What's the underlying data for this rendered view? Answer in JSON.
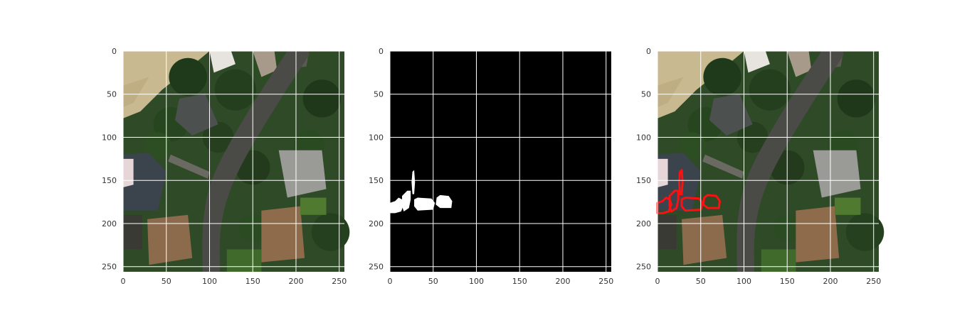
{
  "chart_data": [
    {
      "type": "image",
      "panel": "aerial-image",
      "xlim": [
        0,
        256
      ],
      "ylim": [
        256,
        0
      ],
      "x_ticks": [
        0,
        50,
        100,
        150,
        200,
        250
      ],
      "y_ticks": [
        0,
        50,
        100,
        150,
        200,
        250
      ],
      "grid": true
    },
    {
      "type": "image",
      "panel": "binary-mask",
      "xlim": [
        0,
        256
      ],
      "ylim": [
        256,
        0
      ],
      "x_ticks": [
        0,
        50,
        100,
        150,
        200,
        250
      ],
      "y_ticks": [
        0,
        50,
        100,
        150,
        200,
        250
      ],
      "grid": true,
      "mask_regions": [
        {
          "name": "left-strip",
          "points": [
            [
              0,
              176
            ],
            [
              6,
              174
            ],
            [
              10,
              170
            ],
            [
              14,
              172
            ],
            [
              16,
              178
            ],
            [
              13,
              186
            ],
            [
              6,
              188
            ],
            [
              0,
              188
            ]
          ]
        },
        {
          "name": "upper-block",
          "points": [
            [
              14,
              168
            ],
            [
              20,
              162
            ],
            [
              24,
              162
            ],
            [
              24,
              172
            ],
            [
              22,
              182
            ],
            [
              16,
              186
            ],
            [
              14,
              180
            ]
          ]
        },
        {
          "name": "spike",
          "points": [
            [
              26,
              140
            ],
            [
              28,
              138
            ],
            [
              29,
              152
            ],
            [
              28,
              166
            ],
            [
              26,
              166
            ],
            [
              25,
              152
            ]
          ]
        },
        {
          "name": "mid-block",
          "points": [
            [
              28,
              172
            ],
            [
              32,
              170
            ],
            [
              48,
              171
            ],
            [
              52,
              176
            ],
            [
              50,
              184
            ],
            [
              32,
              185
            ],
            [
              28,
              180
            ]
          ]
        },
        {
          "name": "right-block",
          "points": [
            [
              54,
              170
            ],
            [
              58,
              167
            ],
            [
              68,
              168
            ],
            [
              72,
              174
            ],
            [
              71,
              182
            ],
            [
              58,
              182
            ],
            [
              53,
              178
            ]
          ]
        }
      ],
      "colors": {
        "background": "#000000",
        "mask": "#ffffff"
      }
    },
    {
      "type": "image",
      "panel": "overlay",
      "xlim": [
        0,
        256
      ],
      "ylim": [
        256,
        0
      ],
      "x_ticks": [
        0,
        50,
        100,
        150,
        200,
        250
      ],
      "y_ticks": [
        0,
        50,
        100,
        150,
        200,
        250
      ],
      "grid": true,
      "outline_color": "#ff1010"
    }
  ],
  "colors": {
    "grid": "#ffffff",
    "tick_text": "#333333"
  }
}
